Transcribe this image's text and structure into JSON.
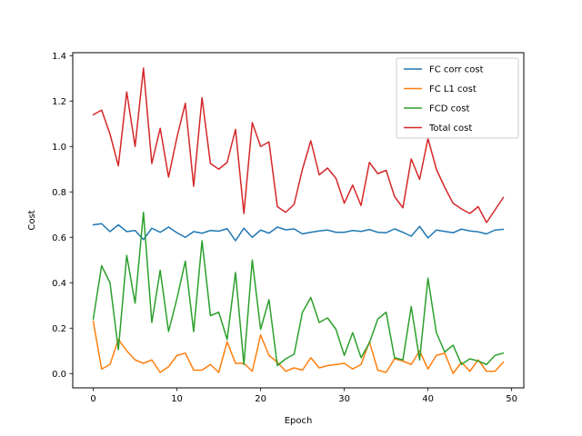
{
  "chart_data": {
    "type": "line",
    "title": "",
    "xlabel": "Epoch",
    "ylabel": "Cost",
    "xlim": [
      -2.45,
      51.45
    ],
    "ylim": [
      -0.063,
      1.413
    ],
    "xticks": [
      0,
      10,
      20,
      30,
      40,
      50
    ],
    "yticks": [
      0.0,
      0.2,
      0.4,
      0.6,
      0.8,
      1.0,
      1.2,
      1.4
    ],
    "ytick_labels": [
      "0.0",
      "0.2",
      "0.4",
      "0.6",
      "0.8",
      "1.0",
      "1.2",
      "1.4"
    ],
    "grid": false,
    "legend_position": "top-right",
    "x": [
      0,
      1,
      2,
      3,
      4,
      5,
      6,
      7,
      8,
      9,
      10,
      11,
      12,
      13,
      14,
      15,
      16,
      17,
      18,
      19,
      20,
      21,
      22,
      23,
      24,
      25,
      26,
      27,
      28,
      29,
      30,
      31,
      32,
      33,
      34,
      35,
      36,
      37,
      38,
      39,
      40,
      41,
      42,
      43,
      44,
      45,
      46,
      47,
      48,
      49
    ],
    "series": [
      {
        "name": "FC corr cost",
        "color": "#1f77b4",
        "values": [
          0.655,
          0.66,
          0.625,
          0.655,
          0.625,
          0.63,
          0.59,
          0.64,
          0.622,
          0.645,
          0.62,
          0.6,
          0.625,
          0.618,
          0.63,
          0.627,
          0.638,
          0.585,
          0.64,
          0.6,
          0.632,
          0.618,
          0.645,
          0.633,
          0.637,
          0.615,
          0.622,
          0.628,
          0.632,
          0.622,
          0.622,
          0.63,
          0.626,
          0.634,
          0.622,
          0.62,
          0.637,
          0.622,
          0.605,
          0.648,
          0.597,
          0.632,
          0.626,
          0.62,
          0.636,
          0.628,
          0.624,
          0.615,
          0.632,
          0.635
        ]
      },
      {
        "name": "FC L1 cost",
        "color": "#ff7f0e",
        "values": [
          0.23,
          0.02,
          0.04,
          0.15,
          0.1,
          0.06,
          0.045,
          0.06,
          0.005,
          0.03,
          0.08,
          0.09,
          0.015,
          0.015,
          0.04,
          0.005,
          0.14,
          0.045,
          0.045,
          0.01,
          0.17,
          0.08,
          0.05,
          0.01,
          0.025,
          0.015,
          0.07,
          0.025,
          0.035,
          0.04,
          0.045,
          0.02,
          0.04,
          0.14,
          0.015,
          0.005,
          0.065,
          0.055,
          0.04,
          0.1,
          0.02,
          0.08,
          0.09,
          0.0,
          0.05,
          0.01,
          0.06,
          0.01,
          0.01,
          0.05
        ]
      },
      {
        "name": "FCD cost",
        "color": "#2ca02c",
        "values": [
          0.24,
          0.475,
          0.4,
          0.105,
          0.52,
          0.31,
          0.71,
          0.225,
          0.455,
          0.185,
          0.33,
          0.495,
          0.185,
          0.585,
          0.255,
          0.27,
          0.15,
          0.445,
          0.04,
          0.5,
          0.195,
          0.325,
          0.035,
          0.065,
          0.085,
          0.27,
          0.335,
          0.225,
          0.245,
          0.195,
          0.08,
          0.18,
          0.07,
          0.135,
          0.24,
          0.27,
          0.07,
          0.06,
          0.295,
          0.06,
          0.42,
          0.18,
          0.095,
          0.125,
          0.04,
          0.065,
          0.055,
          0.04,
          0.08,
          0.09
        ]
      },
      {
        "name": "Total cost",
        "color": "#d62728",
        "values": [
          1.14,
          1.16,
          1.055,
          0.915,
          1.24,
          1.0,
          1.345,
          0.925,
          1.08,
          0.865,
          1.04,
          1.19,
          0.825,
          1.215,
          0.925,
          0.9,
          0.93,
          1.075,
          0.705,
          1.105,
          1.0,
          1.02,
          0.735,
          0.71,
          0.745,
          0.9,
          1.025,
          0.875,
          0.905,
          0.86,
          0.75,
          0.83,
          0.74,
          0.93,
          0.88,
          0.895,
          0.78,
          0.73,
          0.945,
          0.855,
          1.035,
          0.9,
          0.82,
          0.75,
          0.725,
          0.705,
          0.735,
          0.665,
          0.72,
          0.775
        ]
      }
    ]
  }
}
